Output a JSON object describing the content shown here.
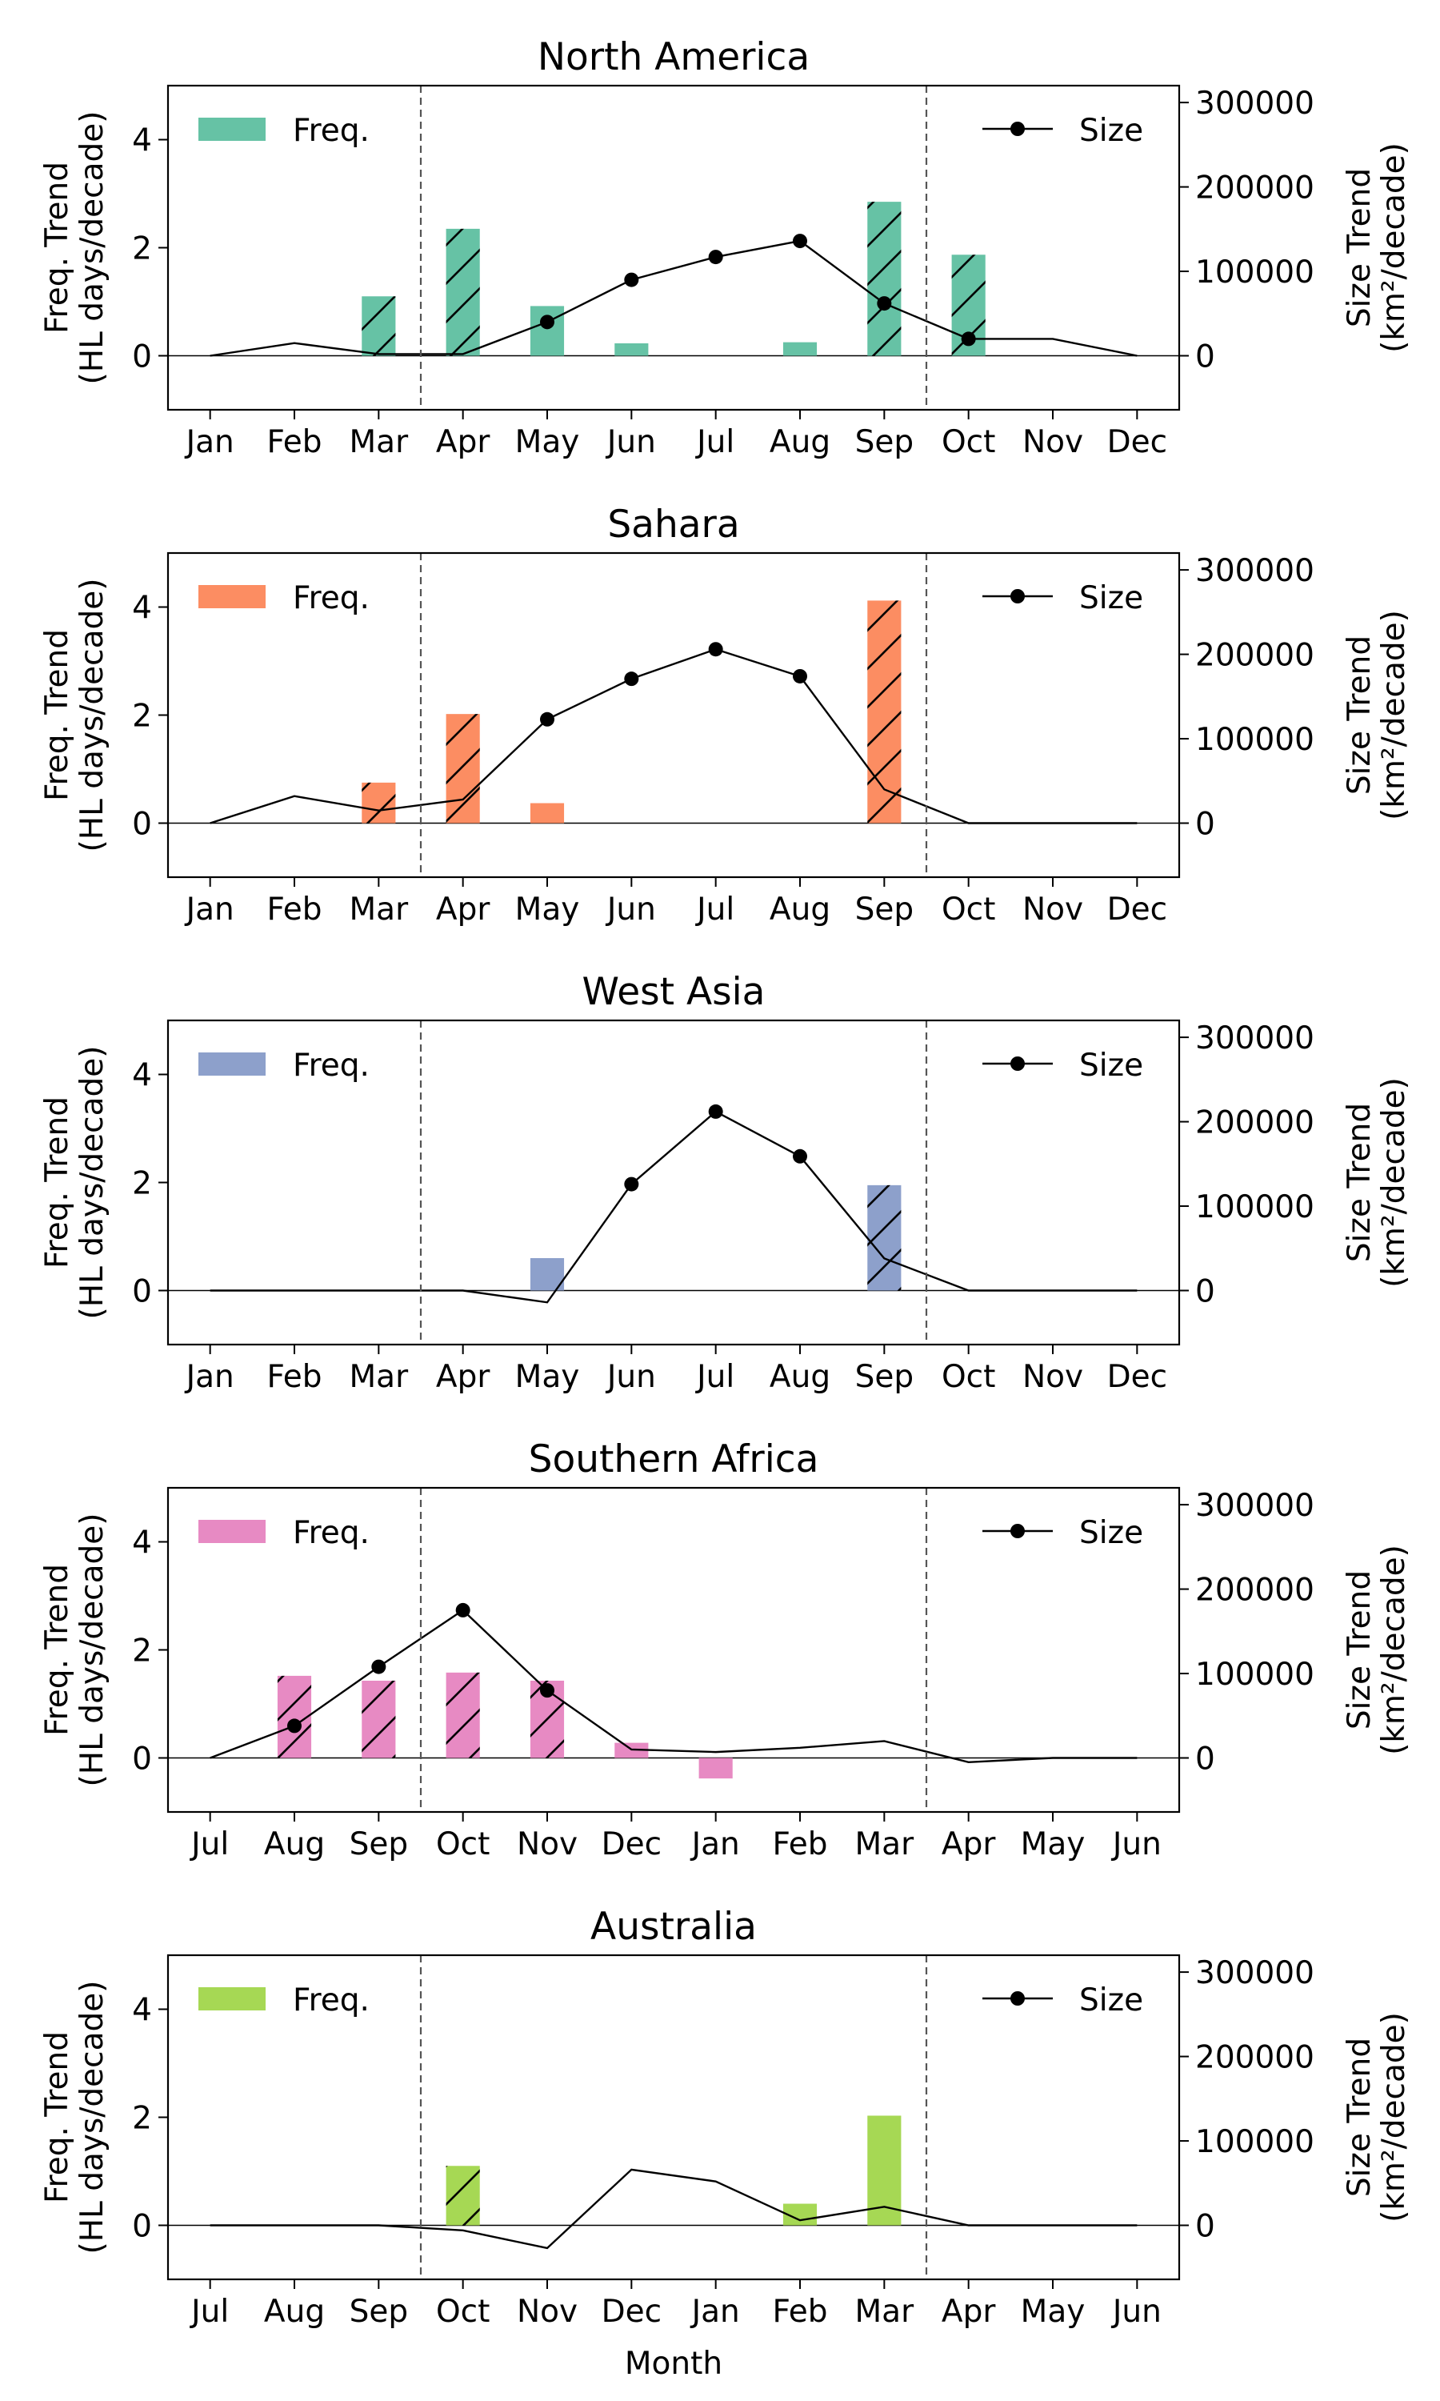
{
  "figure": {
    "xlabel": "Month",
    "axis_labels": {
      "freq_ylabel": [
        "Freq. Trend",
        "(HL days/decade)"
      ],
      "size_ylabel": [
        "Size Trend",
        "(km²/decade)"
      ]
    },
    "legend": {
      "freq_label": "Freq.",
      "size_label": "Size"
    },
    "colors": {
      "line": "#000000",
      "dashed_lines": "#555555"
    }
  },
  "chart_data": [
    {
      "type": "bar",
      "title": "North America",
      "color": "#66c2a5",
      "categories": [
        "Jan",
        "Feb",
        "Mar",
        "Apr",
        "May",
        "Jun",
        "Jul",
        "Aug",
        "Sep",
        "Oct",
        "Nov",
        "Dec"
      ],
      "freq_trend": [
        0,
        0,
        1.1,
        2.35,
        0.92,
        0.23,
        0,
        0.25,
        2.85,
        1.87,
        0,
        0
      ],
      "freq_hatched": [
        false,
        false,
        true,
        true,
        false,
        false,
        false,
        false,
        true,
        true,
        false,
        false
      ],
      "size_trend": [
        0,
        15000,
        2000,
        2000,
        40000,
        90000,
        117000,
        136000,
        62000,
        20000,
        20000,
        0
      ],
      "size_marked": [
        false,
        false,
        false,
        false,
        true,
        true,
        true,
        true,
        true,
        true,
        false,
        false
      ],
      "y_left_range": [
        -1,
        5
      ],
      "y_left_ticks": [
        0,
        2,
        4
      ],
      "y_right_range": [
        -64000,
        320000
      ],
      "y_right_ticks": [
        0,
        100000,
        200000,
        300000
      ],
      "season_bounds": [
        "Mar|Apr",
        "Sep|Oct"
      ],
      "legend_position": "top"
    },
    {
      "type": "bar",
      "title": "Sahara",
      "color": "#fc8d62",
      "categories": [
        "Jan",
        "Feb",
        "Mar",
        "Apr",
        "May",
        "Jun",
        "Jul",
        "Aug",
        "Sep",
        "Oct",
        "Nov",
        "Dec"
      ],
      "freq_trend": [
        0,
        0,
        0.75,
        2.02,
        0.37,
        0,
        0,
        0,
        4.12,
        0,
        0,
        0
      ],
      "freq_hatched": [
        false,
        false,
        true,
        true,
        false,
        false,
        false,
        false,
        true,
        false,
        false,
        false
      ],
      "size_trend": [
        0,
        32000,
        15000,
        28000,
        123000,
        171000,
        206000,
        174000,
        40000,
        0,
        0,
        0
      ],
      "size_marked": [
        false,
        false,
        false,
        false,
        true,
        true,
        true,
        true,
        false,
        false,
        false,
        false
      ],
      "y_left_range": [
        -1,
        5
      ],
      "y_left_ticks": [
        0,
        2,
        4
      ],
      "y_right_range": [
        -64000,
        320000
      ],
      "y_right_ticks": [
        0,
        100000,
        200000,
        300000
      ],
      "season_bounds": [
        "Mar|Apr",
        "Sep|Oct"
      ],
      "legend_position": "top"
    },
    {
      "type": "bar",
      "title": "West Asia",
      "color": "#8da0cb",
      "categories": [
        "Jan",
        "Feb",
        "Mar",
        "Apr",
        "May",
        "Jun",
        "Jul",
        "Aug",
        "Sep",
        "Oct",
        "Nov",
        "Dec"
      ],
      "freq_trend": [
        0,
        0,
        0,
        0,
        0.6,
        0,
        0,
        0,
        1.95,
        0,
        0,
        0
      ],
      "freq_hatched": [
        false,
        false,
        false,
        false,
        false,
        false,
        false,
        false,
        true,
        false,
        false,
        false
      ],
      "size_trend": [
        0,
        0,
        0,
        0,
        -14000,
        126000,
        212000,
        159000,
        38000,
        0,
        0,
        0
      ],
      "size_marked": [
        false,
        false,
        false,
        false,
        false,
        true,
        true,
        true,
        false,
        false,
        false,
        false
      ],
      "y_left_range": [
        -1,
        5
      ],
      "y_left_ticks": [
        0,
        2,
        4
      ],
      "y_right_range": [
        -64000,
        320000
      ],
      "y_right_ticks": [
        0,
        100000,
        200000,
        300000
      ],
      "season_bounds": [
        "Mar|Apr",
        "Sep|Oct"
      ],
      "legend_position": "top"
    },
    {
      "type": "bar",
      "title": "Southern Africa",
      "color": "#e78ac3",
      "categories": [
        "Jul",
        "Aug",
        "Sep",
        "Oct",
        "Nov",
        "Dec",
        "Jan",
        "Feb",
        "Mar",
        "Apr",
        "May",
        "Jun"
      ],
      "freq_trend": [
        0,
        1.52,
        1.43,
        1.58,
        1.43,
        0.28,
        -0.38,
        0,
        0,
        0,
        0,
        0
      ],
      "freq_hatched": [
        false,
        true,
        true,
        true,
        true,
        false,
        false,
        false,
        false,
        false,
        false,
        false
      ],
      "size_trend": [
        0,
        38000,
        108000,
        175000,
        80000,
        10000,
        7000,
        12000,
        20000,
        -5000,
        0,
        0
      ],
      "size_marked": [
        false,
        true,
        true,
        true,
        true,
        false,
        false,
        false,
        false,
        false,
        false,
        false
      ],
      "y_left_range": [
        -1,
        5
      ],
      "y_left_ticks": [
        0,
        2,
        4
      ],
      "y_right_range": [
        -64000,
        320000
      ],
      "y_right_ticks": [
        0,
        100000,
        200000,
        300000
      ],
      "season_bounds": [
        "Sep|Oct",
        "Mar|Apr"
      ],
      "legend_position": "top"
    },
    {
      "type": "bar",
      "title": "Australia",
      "color": "#a6d854",
      "categories": [
        "Jul",
        "Aug",
        "Sep",
        "Oct",
        "Nov",
        "Dec",
        "Jan",
        "Feb",
        "Mar",
        "Apr",
        "May",
        "Jun"
      ],
      "freq_trend": [
        0,
        0,
        0,
        1.1,
        0,
        0,
        0,
        0.4,
        2.03,
        0,
        0,
        0
      ],
      "freq_hatched": [
        false,
        false,
        false,
        true,
        false,
        false,
        false,
        false,
        false,
        false,
        false,
        false
      ],
      "size_trend": [
        0,
        0,
        0,
        -6000,
        -27000,
        66000,
        52000,
        6000,
        22000,
        0,
        0,
        0
      ],
      "size_marked": [
        false,
        false,
        false,
        false,
        false,
        false,
        false,
        false,
        false,
        false,
        false,
        false
      ],
      "y_left_range": [
        -1,
        5
      ],
      "y_left_ticks": [
        0,
        2,
        4
      ],
      "y_right_range": [
        -64000,
        320000
      ],
      "y_right_ticks": [
        0,
        100000,
        200000,
        300000
      ],
      "season_bounds": [
        "Sep|Oct",
        "Mar|Apr"
      ],
      "legend_position": "top"
    }
  ]
}
